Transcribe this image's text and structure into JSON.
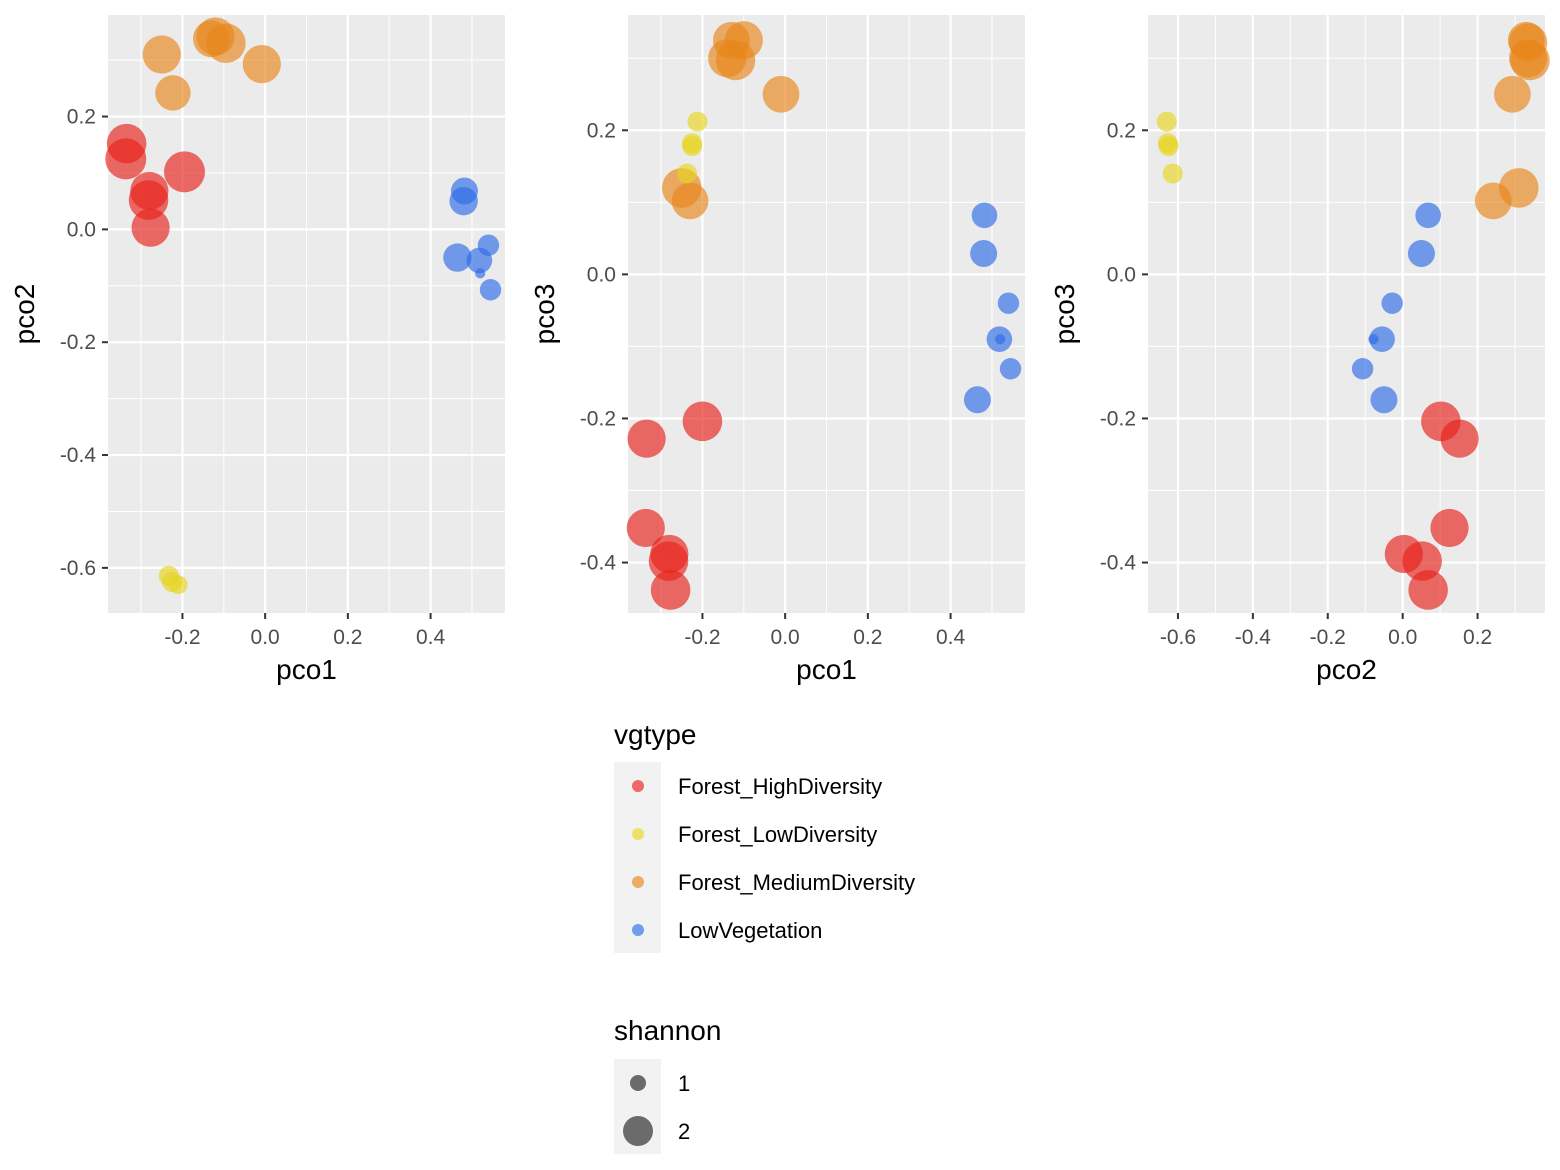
{
  "chart_data": [
    {
      "type": "scatter",
      "title": "",
      "xlabel": "pco1",
      "ylabel": "pco2",
      "xlim": [
        -0.38,
        0.58
      ],
      "ylim": [
        -0.68,
        0.38
      ],
      "x_ticks": [
        -0.2,
        0.0,
        0.2,
        0.4
      ],
      "x_tick_labels": [
        "-0.2",
        "0.0",
        "0.2",
        "0.4"
      ],
      "y_ticks": [
        -0.6,
        -0.4,
        -0.2,
        0.0,
        0.2
      ],
      "y_tick_labels": [
        "-0.6",
        "-0.4",
        "-0.2",
        "0.0",
        "0.2"
      ],
      "grid": true,
      "points": [
        {
          "x": -0.335,
          "y": 0.152,
          "group": "Forest_HighDiversity",
          "shannon": 2.4
        },
        {
          "x": -0.337,
          "y": 0.125,
          "group": "Forest_HighDiversity",
          "shannon": 2.5
        },
        {
          "x": -0.28,
          "y": 0.068,
          "group": "Forest_HighDiversity",
          "shannon": 2.3
        },
        {
          "x": -0.282,
          "y": 0.052,
          "group": "Forest_HighDiversity",
          "shannon": 2.4
        },
        {
          "x": -0.195,
          "y": 0.102,
          "group": "Forest_HighDiversity",
          "shannon": 2.5
        },
        {
          "x": -0.277,
          "y": 0.003,
          "group": "Forest_HighDiversity",
          "shannon": 2.3
        },
        {
          "x": -0.25,
          "y": 0.31,
          "group": "Forest_MediumDiversity",
          "shannon": 2.3
        },
        {
          "x": -0.223,
          "y": 0.242,
          "group": "Forest_MediumDiversity",
          "shannon": 2.1
        },
        {
          "x": -0.13,
          "y": 0.338,
          "group": "Forest_MediumDiversity",
          "shannon": 2.2
        },
        {
          "x": -0.12,
          "y": 0.342,
          "group": "Forest_MediumDiversity",
          "shannon": 2.3
        },
        {
          "x": -0.095,
          "y": 0.33,
          "group": "Forest_MediumDiversity",
          "shannon": 2.4
        },
        {
          "x": -0.008,
          "y": 0.293,
          "group": "Forest_MediumDiversity",
          "shannon": 2.3
        },
        {
          "x": -0.233,
          "y": -0.614,
          "group": "Forest_LowDiversity",
          "shannon": 1.0
        },
        {
          "x": -0.225,
          "y": -0.625,
          "group": "Forest_LowDiversity",
          "shannon": 1.0
        },
        {
          "x": -0.21,
          "y": -0.63,
          "group": "Forest_LowDiversity",
          "shannon": 0.9
        },
        {
          "x": 0.482,
          "y": 0.068,
          "group": "LowVegetation",
          "shannon": 1.5
        },
        {
          "x": 0.48,
          "y": 0.05,
          "group": "LowVegetation",
          "shannon": 1.6
        },
        {
          "x": 0.465,
          "y": -0.05,
          "group": "LowVegetation",
          "shannon": 1.6
        },
        {
          "x": 0.518,
          "y": -0.055,
          "group": "LowVegetation",
          "shannon": 1.4
        },
        {
          "x": 0.54,
          "y": -0.028,
          "group": "LowVegetation",
          "shannon": 1.1
        },
        {
          "x": 0.545,
          "y": -0.107,
          "group": "LowVegetation",
          "shannon": 1.1
        },
        {
          "x": 0.52,
          "y": -0.078,
          "group": "LowVegetation",
          "shannon": 0.3
        }
      ]
    },
    {
      "type": "scatter",
      "title": "",
      "xlabel": "pco1",
      "ylabel": "pco3",
      "xlim": [
        -0.38,
        0.58
      ],
      "ylim": [
        -0.47,
        0.36
      ],
      "x_ticks": [
        -0.2,
        0.0,
        0.2,
        0.4
      ],
      "x_tick_labels": [
        "-0.2",
        "0.0",
        "0.2",
        "0.4"
      ],
      "y_ticks": [
        -0.4,
        -0.2,
        0.0,
        0.2
      ],
      "y_tick_labels": [
        "-0.4",
        "-0.2",
        "0.0",
        "0.2"
      ],
      "grid": true,
      "points": [
        {
          "x": -0.335,
          "y": -0.228,
          "group": "Forest_HighDiversity",
          "shannon": 2.3
        },
        {
          "x": -0.2,
          "y": -0.204,
          "group": "Forest_HighDiversity",
          "shannon": 2.4
        },
        {
          "x": -0.337,
          "y": -0.352,
          "group": "Forest_HighDiversity",
          "shannon": 2.3
        },
        {
          "x": -0.28,
          "y": -0.388,
          "group": "Forest_HighDiversity",
          "shannon": 2.3
        },
        {
          "x": -0.282,
          "y": -0.398,
          "group": "Forest_HighDiversity",
          "shannon": 2.4
        },
        {
          "x": -0.277,
          "y": -0.438,
          "group": "Forest_HighDiversity",
          "shannon": 2.4
        },
        {
          "x": -0.13,
          "y": 0.325,
          "group": "Forest_MediumDiversity",
          "shannon": 2.2
        },
        {
          "x": -0.1,
          "y": 0.325,
          "group": "Forest_MediumDiversity",
          "shannon": 2.3
        },
        {
          "x": -0.14,
          "y": 0.3,
          "group": "Forest_MediumDiversity",
          "shannon": 2.3
        },
        {
          "x": -0.12,
          "y": 0.297,
          "group": "Forest_MediumDiversity",
          "shannon": 2.4
        },
        {
          "x": -0.01,
          "y": 0.25,
          "group": "Forest_MediumDiversity",
          "shannon": 2.2
        },
        {
          "x": -0.25,
          "y": 0.12,
          "group": "Forest_MediumDiversity",
          "shannon": 2.4
        },
        {
          "x": -0.23,
          "y": 0.102,
          "group": "Forest_MediumDiversity",
          "shannon": 2.2
        },
        {
          "x": -0.212,
          "y": 0.212,
          "group": "Forest_LowDiversity",
          "shannon": 1.0
        },
        {
          "x": -0.225,
          "y": 0.182,
          "group": "Forest_LowDiversity",
          "shannon": 1.0
        },
        {
          "x": -0.225,
          "y": 0.178,
          "group": "Forest_LowDiversity",
          "shannon": 1.0
        },
        {
          "x": -0.237,
          "y": 0.14,
          "group": "Forest_LowDiversity",
          "shannon": 1.0
        },
        {
          "x": 0.482,
          "y": 0.082,
          "group": "LowVegetation",
          "shannon": 1.4
        },
        {
          "x": 0.48,
          "y": 0.029,
          "group": "LowVegetation",
          "shannon": 1.5
        },
        {
          "x": 0.54,
          "y": -0.04,
          "group": "LowVegetation",
          "shannon": 1.1
        },
        {
          "x": 0.518,
          "y": -0.09,
          "group": "LowVegetation",
          "shannon": 1.4
        },
        {
          "x": 0.545,
          "y": -0.131,
          "group": "LowVegetation",
          "shannon": 1.1
        },
        {
          "x": 0.465,
          "y": -0.174,
          "group": "LowVegetation",
          "shannon": 1.5
        },
        {
          "x": 0.52,
          "y": -0.09,
          "group": "LowVegetation",
          "shannon": 0.3
        }
      ]
    },
    {
      "type": "scatter",
      "title": "",
      "xlabel": "pco2",
      "ylabel": "pco3",
      "xlim": [
        -0.68,
        0.38
      ],
      "ylim": [
        -0.47,
        0.36
      ],
      "x_ticks": [
        -0.6,
        -0.4,
        -0.2,
        0.0,
        0.2
      ],
      "x_tick_labels": [
        "-0.6",
        "-0.4",
        "-0.2",
        "0.0",
        "0.2"
      ],
      "y_ticks": [
        -0.4,
        -0.2,
        0.0,
        0.2
      ],
      "y_tick_labels": [
        "-0.4",
        "-0.2",
        "0.0",
        "0.2"
      ],
      "grid": true,
      "points": [
        {
          "x": -0.63,
          "y": 0.212,
          "group": "Forest_LowDiversity",
          "shannon": 1.0
        },
        {
          "x": -0.627,
          "y": 0.182,
          "group": "Forest_LowDiversity",
          "shannon": 1.0
        },
        {
          "x": -0.625,
          "y": 0.178,
          "group": "Forest_LowDiversity",
          "shannon": 1.0
        },
        {
          "x": -0.614,
          "y": 0.14,
          "group": "Forest_LowDiversity",
          "shannon": 1.0
        },
        {
          "x": 0.33,
          "y": 0.325,
          "group": "Forest_MediumDiversity",
          "shannon": 2.2
        },
        {
          "x": 0.335,
          "y": 0.322,
          "group": "Forest_MediumDiversity",
          "shannon": 2.3
        },
        {
          "x": 0.335,
          "y": 0.3,
          "group": "Forest_MediumDiversity",
          "shannon": 2.3
        },
        {
          "x": 0.34,
          "y": 0.297,
          "group": "Forest_MediumDiversity",
          "shannon": 2.4
        },
        {
          "x": 0.293,
          "y": 0.25,
          "group": "Forest_MediumDiversity",
          "shannon": 2.2
        },
        {
          "x": 0.31,
          "y": 0.12,
          "group": "Forest_MediumDiversity",
          "shannon": 2.4
        },
        {
          "x": 0.242,
          "y": 0.102,
          "group": "Forest_MediumDiversity",
          "shannon": 2.2
        },
        {
          "x": 0.068,
          "y": 0.082,
          "group": "LowVegetation",
          "shannon": 1.4
        },
        {
          "x": 0.05,
          "y": 0.029,
          "group": "LowVegetation",
          "shannon": 1.5
        },
        {
          "x": -0.028,
          "y": -0.04,
          "group": "LowVegetation",
          "shannon": 1.1
        },
        {
          "x": -0.055,
          "y": -0.09,
          "group": "LowVegetation",
          "shannon": 1.4
        },
        {
          "x": -0.107,
          "y": -0.131,
          "group": "LowVegetation",
          "shannon": 1.1
        },
        {
          "x": -0.05,
          "y": -0.174,
          "group": "LowVegetation",
          "shannon": 1.5
        },
        {
          "x": -0.078,
          "y": -0.09,
          "group": "LowVegetation",
          "shannon": 0.3
        },
        {
          "x": 0.102,
          "y": -0.204,
          "group": "Forest_HighDiversity",
          "shannon": 2.4
        },
        {
          "x": 0.152,
          "y": -0.228,
          "group": "Forest_HighDiversity",
          "shannon": 2.3
        },
        {
          "x": 0.125,
          "y": -0.352,
          "group": "Forest_HighDiversity",
          "shannon": 2.3
        },
        {
          "x": 0.003,
          "y": -0.388,
          "group": "Forest_HighDiversity",
          "shannon": 2.3
        },
        {
          "x": 0.052,
          "y": -0.398,
          "group": "Forest_HighDiversity",
          "shannon": 2.4
        },
        {
          "x": 0.068,
          "y": -0.438,
          "group": "Forest_HighDiversity",
          "shannon": 2.4
        }
      ]
    }
  ],
  "legend": {
    "placement": "bottom-center",
    "color_title": "vgtype",
    "color_entries": [
      {
        "label": "Forest_HighDiversity",
        "color": "#E8211A"
      },
      {
        "label": "Forest_LowDiversity",
        "color": "#E8D421"
      },
      {
        "label": "Forest_MediumDiversity",
        "color": "#E8861A"
      },
      {
        "label": "LowVegetation",
        "color": "#2E6BE8"
      }
    ],
    "size_title": "shannon",
    "size_entries": [
      {
        "label": "1",
        "value": 1
      },
      {
        "label": "2",
        "value": 2
      }
    ]
  },
  "style": {
    "panel_background": "#EBEBEB",
    "grid_color": "#FFFFFF",
    "point_alpha": 0.65
  }
}
